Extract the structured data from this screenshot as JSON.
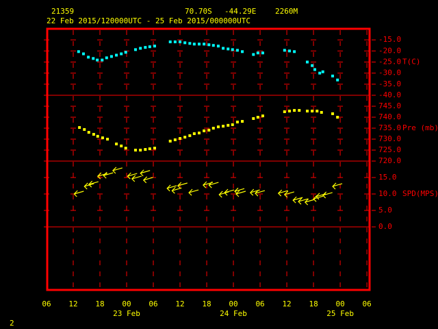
{
  "header": {
    "station": "21359",
    "latitude": "70.70S",
    "longitude": "-44.29E",
    "elevation": "2260M",
    "period": "22 Feb 2015/120000UTC - 25 Feb 2015/000000UTC"
  },
  "x_axis": {
    "xlim": [
      6,
      78.6
    ],
    "xticks": [
      {
        "value": 6,
        "label": "06"
      },
      {
        "value": 12,
        "label": "12"
      },
      {
        "value": 18,
        "label": "18"
      },
      {
        "value": 24,
        "label": "00"
      },
      {
        "value": 30,
        "label": "06"
      },
      {
        "value": 36,
        "label": "12"
      },
      {
        "value": 42,
        "label": "18"
      },
      {
        "value": 48,
        "label": "00"
      },
      {
        "value": 54,
        "label": "06"
      },
      {
        "value": 60,
        "label": "12"
      },
      {
        "value": 66,
        "label": "18"
      },
      {
        "value": 72,
        "label": "00"
      },
      {
        "value": 78,
        "label": "06"
      }
    ],
    "day_ticks": [
      {
        "value": 24,
        "label": "23 Feb"
      },
      {
        "value": 48,
        "label": "24 Feb"
      },
      {
        "value": 72,
        "label": "25 Feb"
      }
    ]
  },
  "chart_data": [
    {
      "type": "scatter",
      "y_label": "T(C)",
      "color": "#00ffff",
      "ylim": [
        -40,
        -10
      ],
      "yticks": [
        {
          "value": -15,
          "label": "-15.0"
        },
        {
          "value": -20,
          "label": "-20.0"
        },
        {
          "value": -25,
          "label": "-25.0"
        },
        {
          "value": -30,
          "label": "-30.0"
        },
        {
          "value": -35,
          "label": "-35.0"
        },
        {
          "value": -40,
          "label": "-40.0"
        }
      ],
      "x": [
        13.2,
        14.3,
        15.4,
        16.5,
        17.4,
        18.5,
        19.5,
        20.6,
        21.7,
        22.8,
        23.8,
        26.0,
        27.1,
        28.2,
        29.2,
        30.3,
        33.8,
        34.9,
        36.0,
        37.1,
        38.2,
        39.2,
        40.3,
        41.4,
        42.5,
        43.5,
        44.6,
        45.7,
        46.8,
        47.8,
        48.9,
        50.0,
        52.5,
        53.5,
        54.6,
        59.5,
        60.6,
        61.7,
        64.6,
        65.7,
        66.3,
        67.4,
        68.1,
        70.3,
        71.4
      ],
      "values": [
        -20.3,
        -21.3,
        -22.8,
        -23.4,
        -24.1,
        -24.1,
        -23.1,
        -22.5,
        -21.9,
        -21.3,
        -20.6,
        -19.4,
        -18.8,
        -18.4,
        -18.1,
        -17.8,
        -15.9,
        -15.9,
        -15.9,
        -16.3,
        -16.6,
        -16.9,
        -16.9,
        -16.9,
        -17.2,
        -17.5,
        -17.8,
        -18.8,
        -19.1,
        -19.4,
        -19.7,
        -20.3,
        -21.6,
        -20.9,
        -20.9,
        -19.7,
        -20.0,
        -20.3,
        -25.0,
        -26.6,
        -28.4,
        -30.0,
        -29.4,
        -31.3,
        -33.1
      ]
    },
    {
      "type": "scatter",
      "y_label": "Pre (mb)",
      "color": "#ffff00",
      "ylim": [
        720,
        750
      ],
      "yticks": [
        {
          "value": 745,
          "label": "745.0"
        },
        {
          "value": 740,
          "label": "740.0"
        },
        {
          "value": 735,
          "label": "735.0"
        },
        {
          "value": 730,
          "label": "730.0"
        },
        {
          "value": 725,
          "label": "725.0"
        },
        {
          "value": 720,
          "label": "720.0"
        }
      ],
      "x": [
        13.4,
        14.5,
        15.5,
        16.6,
        17.5,
        18.6,
        19.7,
        21.7,
        22.8,
        23.8,
        26.0,
        27.1,
        28.2,
        29.2,
        30.3,
        33.8,
        34.9,
        36.0,
        37.1,
        38.2,
        39.2,
        40.3,
        41.4,
        42.5,
        43.5,
        44.6,
        45.7,
        46.8,
        47.8,
        48.9,
        50.0,
        52.5,
        53.5,
        54.6,
        59.5,
        60.6,
        61.7,
        62.8,
        64.6,
        65.7,
        66.8,
        67.8,
        70.3,
        71.4
      ],
      "values": [
        735.3,
        734.4,
        733.1,
        732.2,
        731.3,
        730.6,
        730.0,
        727.8,
        726.9,
        725.9,
        725.0,
        725.0,
        725.3,
        725.6,
        725.9,
        729.1,
        729.7,
        730.3,
        730.9,
        731.6,
        732.5,
        732.8,
        733.8,
        734.1,
        735.0,
        735.6,
        735.9,
        736.3,
        736.6,
        737.8,
        738.1,
        739.4,
        740.0,
        740.6,
        742.5,
        742.8,
        743.1,
        743.1,
        742.8,
        742.8,
        742.8,
        742.2,
        741.6,
        740.0
      ]
    },
    {
      "type": "arrow",
      "y_label": "SPD(MPS)",
      "color": "#ffff00",
      "ylim": [
        0,
        20
      ],
      "yticks": [
        {
          "value": 15,
          "label": "15.0"
        },
        {
          "value": 10,
          "label": "10.0"
        },
        {
          "value": 5,
          "label": "5.0"
        },
        {
          "value": 0,
          "label": "0.0"
        }
      ],
      "x": [
        12.2,
        14.5,
        15.5,
        17.5,
        18.8,
        20.9,
        24.2,
        25.2,
        27.1,
        27.8,
        33.1,
        34.2,
        35.5,
        38.0,
        41.2,
        42.5,
        44.8,
        46.0,
        48.3,
        48.6,
        51.8,
        52.9,
        58.1,
        59.5,
        61.4,
        62.6,
        64.1,
        66.0,
        66.6,
        68.1,
        70.3
      ],
      "values": [
        10.0,
        12.3,
        12.9,
        15.4,
        15.6,
        17.1,
        15.4,
        14.6,
        16.3,
        14.2,
        11.7,
        11.0,
        12.5,
        10.4,
        12.7,
        12.7,
        9.8,
        10.4,
        10.8,
        10.0,
        10.4,
        10.2,
        10.2,
        9.8,
        8.1,
        7.7,
        7.5,
        8.5,
        9.2,
        9.6,
        12.3
      ]
    }
  ],
  "footer": "2"
}
